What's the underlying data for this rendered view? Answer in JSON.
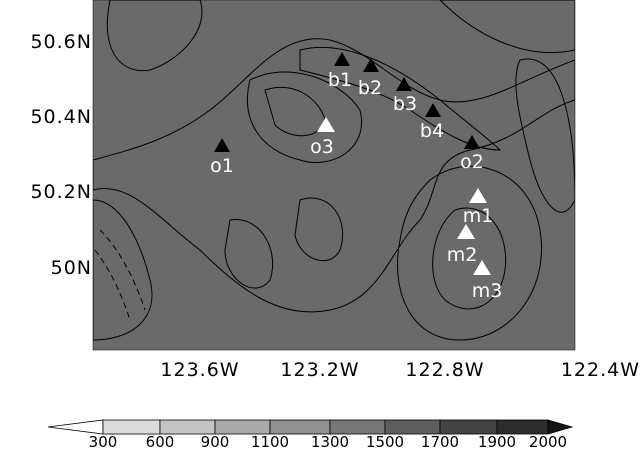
{
  "latitude_labels": [
    "50.6N",
    "50.4N",
    "50.2N",
    "50N"
  ],
  "longitude_labels": [
    "123.6W",
    "123.2W",
    "122.8W",
    "122.4W"
  ],
  "stations": [
    "b1",
    "b2",
    "b3",
    "b4",
    "o3",
    "o1",
    "o2",
    "m1",
    "m2",
    "m3"
  ],
  "colorbar": {
    "levels": [
      300,
      600,
      900,
      1100,
      1300,
      1500,
      1700,
      1900,
      2000
    ]
  }
}
